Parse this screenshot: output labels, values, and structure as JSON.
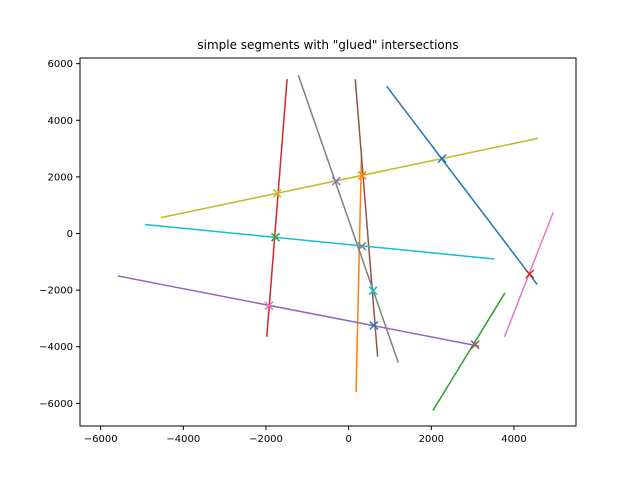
{
  "chart_data": {
    "type": "line",
    "title": "simple segments with \"glued\" intersections",
    "xlabel": "",
    "ylabel": "",
    "xlim": [
      -6500,
      5500
    ],
    "ylim": [
      -6800,
      6200
    ],
    "xticks": [
      -6000,
      -4000,
      -2000,
      0,
      2000,
      4000
    ],
    "yticks": [
      -6000,
      -4000,
      -2000,
      0,
      2000,
      4000,
      6000
    ],
    "grid": false,
    "segments": [
      {
        "color": "#1f77b4",
        "x": [
          920,
          4560
        ],
        "y": [
          5200,
          -1800
        ]
      },
      {
        "color": "#ff7f0e",
        "x": [
          180,
          310
        ],
        "y": [
          -5600,
          2800
        ]
      },
      {
        "color": "#2ca02c",
        "x": [
          2040,
          3780
        ],
        "y": [
          -6250,
          -2100
        ]
      },
      {
        "color": "#d62728",
        "x": [
          -1980,
          -1490
        ],
        "y": [
          -3650,
          5450
        ]
      },
      {
        "color": "#9467bd",
        "x": [
          -5580,
          3150
        ],
        "y": [
          -1500,
          -3980
        ]
      },
      {
        "color": "#8c564b",
        "x": [
          160,
          700
        ],
        "y": [
          5450,
          -4350
        ]
      },
      {
        "color": "#e377c2",
        "x": [
          3770,
          4950
        ],
        "y": [
          -3650,
          750
        ]
      },
      {
        "color": "#7f7f7f",
        "x": [
          -1220,
          1200
        ],
        "y": [
          5600,
          -4560
        ]
      },
      {
        "color": "#bcbd22",
        "x": [
          -4540,
          4580
        ],
        "y": [
          560,
          3360
        ]
      },
      {
        "color": "#17becf",
        "x": [
          -4930,
          3520
        ],
        "y": [
          320,
          -900
        ]
      }
    ],
    "intersections": [
      {
        "color": "#1f77b4",
        "x": 2260,
        "y": 2650
      },
      {
        "color": "#ff7f0e",
        "x": 330,
        "y": 2050
      },
      {
        "color": "#2ca02c",
        "x": -1770,
        "y": -130
      },
      {
        "color": "#d62728",
        "x": 4380,
        "y": -1430
      },
      {
        "color": "#9467bd",
        "x": -300,
        "y": 1850
      },
      {
        "color": "#8c564b",
        "x": 3060,
        "y": -3930
      },
      {
        "color": "#e377c2",
        "x": -1930,
        "y": -2550
      },
      {
        "color": "#7f7f7f",
        "x": 320,
        "y": -450
      },
      {
        "color": "#bcbd22",
        "x": -1730,
        "y": 1420
      },
      {
        "color": "#17becf",
        "x": 590,
        "y": -2020
      },
      {
        "color": "#1f77b4",
        "x": 610,
        "y": -3250
      }
    ]
  }
}
